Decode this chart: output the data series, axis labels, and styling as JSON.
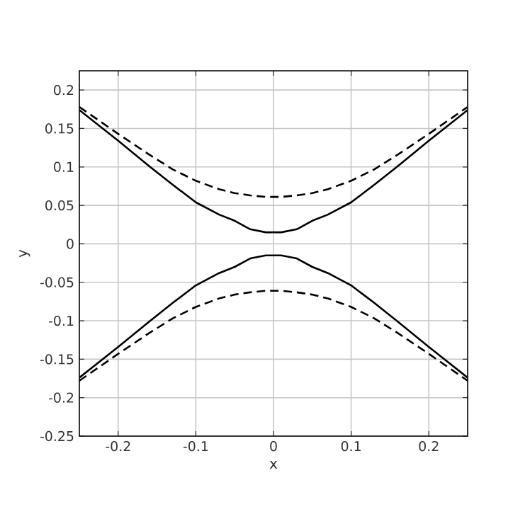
{
  "chart_data": {
    "type": "line",
    "xlabel": "x",
    "ylabel": "y",
    "x": [
      -0.25,
      -0.2,
      -0.16,
      -0.13,
      -0.1,
      -0.07,
      -0.05,
      -0.03,
      -0.01,
      0.01,
      0.03,
      0.05,
      0.07,
      0.1,
      0.13,
      0.16,
      0.2,
      0.25
    ],
    "series": [
      {
        "color": "#000000",
        "line_style": "solid",
        "values": [
          0.174,
          0.134,
          0.101,
          0.077,
          0.054,
          0.038,
          0.03,
          0.019,
          0.015,
          0.015,
          0.019,
          0.03,
          0.038,
          0.054,
          0.077,
          0.101,
          0.134,
          0.174
        ]
      },
      {
        "color": "#000000",
        "line_style": "solid",
        "values": [
          -0.174,
          -0.134,
          -0.101,
          -0.077,
          -0.054,
          -0.038,
          -0.03,
          -0.019,
          -0.015,
          -0.015,
          -0.019,
          -0.03,
          -0.038,
          -0.054,
          -0.077,
          -0.101,
          -0.134,
          -0.174
        ]
      },
      {
        "color": "#000000",
        "line_style": "dashed",
        "values": [
          0.178,
          0.143,
          0.116,
          0.097,
          0.082,
          0.071,
          0.066,
          0.063,
          0.061,
          0.061,
          0.063,
          0.066,
          0.071,
          0.082,
          0.097,
          0.116,
          0.143,
          0.178
        ]
      },
      {
        "color": "#000000",
        "line_style": "dashed",
        "values": [
          -0.178,
          -0.143,
          -0.116,
          -0.097,
          -0.082,
          -0.071,
          -0.066,
          -0.063,
          -0.061,
          -0.061,
          -0.063,
          -0.066,
          -0.071,
          -0.082,
          -0.097,
          -0.116,
          -0.143,
          -0.178
        ]
      }
    ],
    "xlim": [
      -0.25,
      0.25
    ],
    "ylim": [
      -0.25,
      0.225
    ],
    "xticks": [
      -0.2,
      -0.1,
      0,
      0.1,
      0.2
    ],
    "yticks": [
      -0.25,
      -0.2,
      -0.15,
      -0.1,
      -0.05,
      0,
      0.05,
      0.1,
      0.15,
      0.2
    ],
    "grid": true,
    "marker": "none"
  }
}
